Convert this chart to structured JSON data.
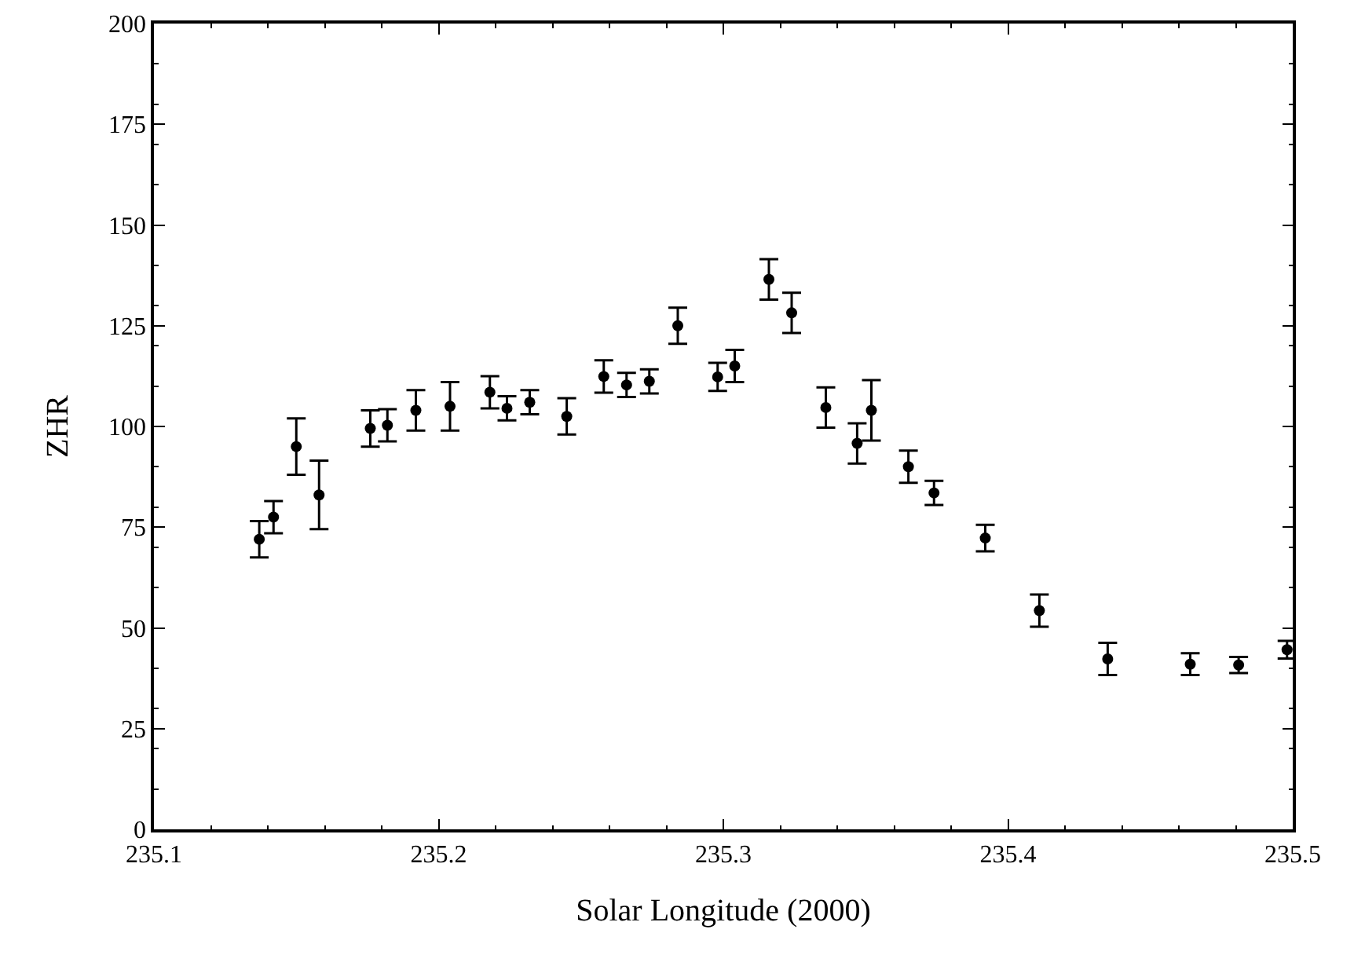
{
  "chart_data": {
    "type": "scatter",
    "xlabel": "Solar Longitude (2000)",
    "ylabel": "ZHR",
    "x": [
      235.137,
      235.142,
      235.15,
      235.158,
      235.176,
      235.182,
      235.192,
      235.204,
      235.218,
      235.224,
      235.232,
      235.245,
      235.258,
      235.266,
      235.274,
      235.284,
      235.298,
      235.304,
      235.316,
      235.324,
      235.336,
      235.347,
      235.352,
      235.365,
      235.374,
      235.392,
      235.411,
      235.435,
      235.464,
      235.481,
      235.498
    ],
    "series": [
      {
        "color": "#000000",
        "values": [
          72,
          77.5,
          95,
          83,
          99.5,
          100.3,
          104,
          105,
          108.5,
          104.5,
          106,
          102.5,
          112.4,
          110.3,
          111.2,
          125,
          112.3,
          115,
          136.5,
          128.2,
          104.7,
          95.8,
          104,
          90,
          83.5,
          72.3,
          54.3,
          42.3,
          41,
          40.8,
          44.6
        ],
        "errors": [
          4.5,
          4,
          7,
          8.5,
          4.5,
          4,
          5,
          6,
          4,
          3,
          3,
          4.5,
          4,
          3,
          3,
          4.5,
          3.5,
          4,
          5,
          5,
          5,
          5,
          7.5,
          4,
          3,
          3.3,
          4,
          4,
          2.7,
          2,
          2.2
        ]
      }
    ],
    "xlim": [
      235.1,
      235.5
    ],
    "xticks": [
      235.1,
      235.2,
      235.3,
      235.4,
      235.5
    ],
    "ylim": [
      0,
      200
    ],
    "yticks": [
      0,
      25,
      50,
      75,
      100,
      125,
      150,
      175,
      200
    ],
    "marker": "circle",
    "grid": false,
    "legend": false
  }
}
